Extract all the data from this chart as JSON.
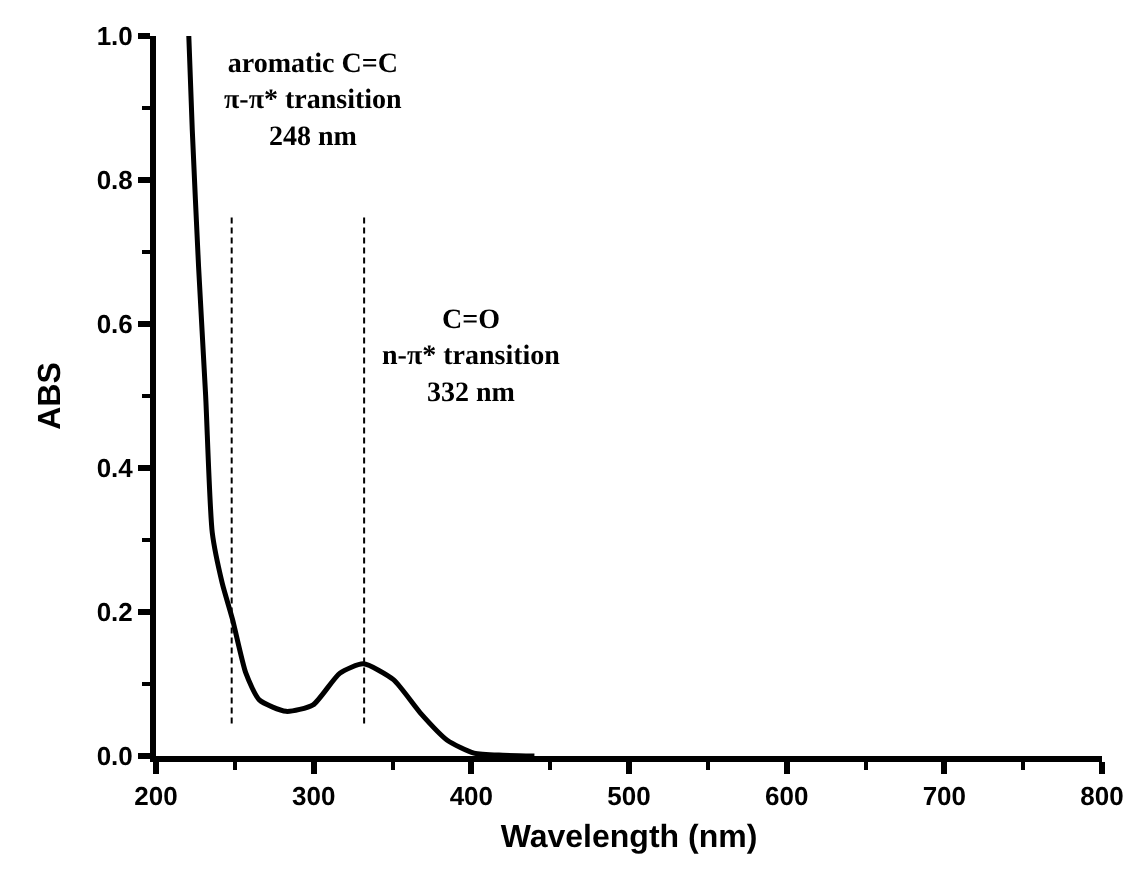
{
  "chart_data": {
    "type": "line",
    "xlabel": "Wavelength (nm)",
    "ylabel": "ABS",
    "x": [
      220.8,
      223,
      227,
      231.5,
      235.7,
      242,
      248.5,
      257,
      265.5,
      282.5,
      299.6,
      316.6,
      331.5,
      350.6,
      367.6,
      384.7,
      401.7,
      420,
      440
    ],
    "series": [
      {
        "color": "#000000",
        "values": [
          1.0,
          0.87,
          0.68,
          0.5,
          0.31,
          0.24,
          0.19,
          0.115,
          0.078,
          0.062,
          0.071,
          0.115,
          0.128,
          0.106,
          0.06,
          0.022,
          0.004,
          0.001,
          0.0
        ]
      }
    ],
    "xlim": [
      200,
      800
    ],
    "xticks": [
      200,
      300,
      400,
      500,
      600,
      700,
      800
    ],
    "ylim": [
      0,
      1
    ],
    "yticks": [
      {
        "value": 0,
        "label": "0.0"
      },
      0.2,
      0.4,
      0.6,
      0.8,
      {
        "value": 1,
        "label": "1.0"
      }
    ],
    "ref_lines": [
      {
        "axis": "x",
        "value": 248,
        "color": "#000000",
        "line_style": "dashed"
      },
      {
        "axis": "x",
        "value": 332,
        "color": "#000000",
        "line_style": "dashed"
      }
    ],
    "annotations": [
      "aromatic C=C\nπ-π* transition\n248 nm",
      "C=O\nn-π* transition\n332 nm"
    ],
    "grid": false,
    "marker": "none",
    "line_style": "solid"
  }
}
